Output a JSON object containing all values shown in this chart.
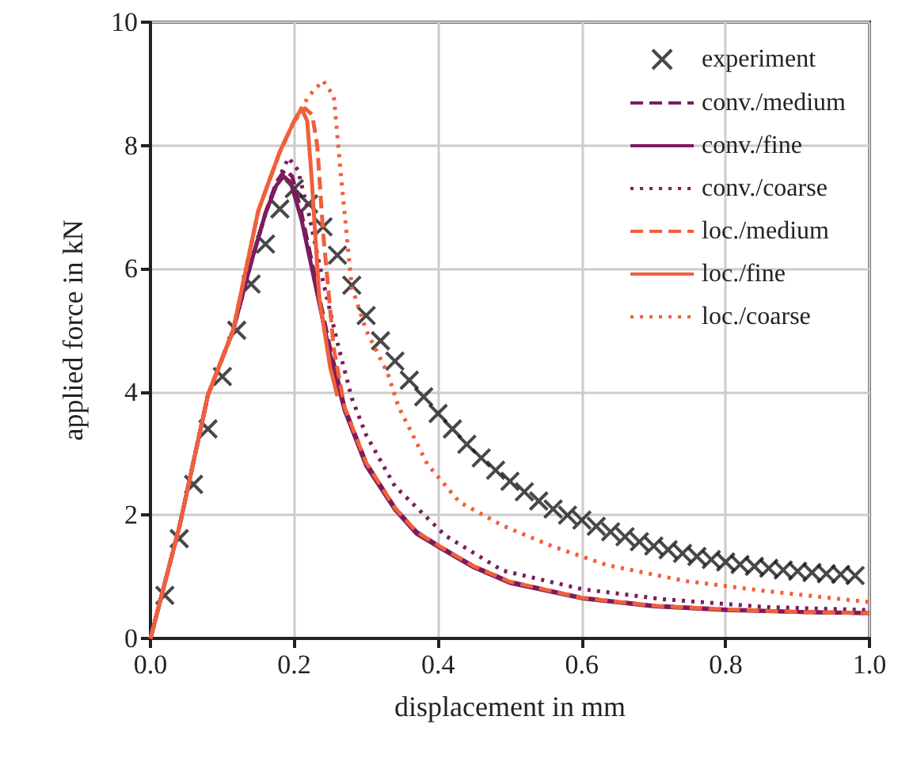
{
  "chart_data": {
    "type": "line",
    "xlabel": "displacement in mm",
    "ylabel": "applied force in kN",
    "xlim": [
      0,
      1
    ],
    "xticks": [
      {
        "value": 0,
        "label": "0.0"
      },
      0.2,
      0.4,
      0.6,
      0.8,
      {
        "value": 1,
        "label": "1.0"
      }
    ],
    "ylim": [
      0,
      10
    ],
    "yticks": [
      0,
      2,
      4,
      6,
      8,
      10
    ],
    "grid": true,
    "legend": "top right",
    "series": [
      {
        "name": "experiment",
        "type": "scatter",
        "marker": "cross",
        "color": "#1a1a1a",
        "x": [
          0.02,
          0.04,
          0.06,
          0.08,
          0.1,
          0.12,
          0.14,
          0.16,
          0.18,
          0.2,
          0.22,
          0.24,
          0.26,
          0.28,
          0.3,
          0.32,
          0.34,
          0.36,
          0.38,
          0.4,
          0.42,
          0.44,
          0.46,
          0.48,
          0.5,
          0.52,
          0.54,
          0.56,
          0.58,
          0.6,
          0.62,
          0.64,
          0.66,
          0.68,
          0.7,
          0.72,
          0.74,
          0.76,
          0.78,
          0.8,
          0.82,
          0.84,
          0.86,
          0.88,
          0.9,
          0.92,
          0.94,
          0.96,
          0.98
        ],
        "values": [
          0.7,
          1.62,
          2.5,
          3.4,
          4.25,
          5.0,
          5.75,
          6.4,
          6.97,
          7.3,
          7.05,
          6.68,
          6.22,
          5.73,
          5.24,
          4.83,
          4.5,
          4.19,
          3.92,
          3.65,
          3.4,
          3.15,
          2.93,
          2.73,
          2.55,
          2.38,
          2.23,
          2.1,
          2.0,
          1.92,
          1.82,
          1.73,
          1.65,
          1.57,
          1.5,
          1.44,
          1.38,
          1.33,
          1.28,
          1.24,
          1.2,
          1.17,
          1.14,
          1.11,
          1.09,
          1.07,
          1.05,
          1.04,
          1.02
        ]
      },
      {
        "name": "conv./medium",
        "type": "line",
        "line_style": "dashed",
        "color": "#7b1c5c",
        "x": [
          0,
          0.04,
          0.08,
          0.115,
          0.14,
          0.16,
          0.175,
          0.187,
          0.197,
          0.21,
          0.23,
          0.25,
          0.27,
          0.3,
          0.34,
          0.37,
          0.41,
          0.45,
          0.5,
          0.6,
          0.7,
          0.8,
          0.9,
          1.0
        ],
        "values": [
          0,
          1.8,
          3.95,
          5.0,
          6.1,
          6.9,
          7.4,
          7.6,
          7.5,
          6.9,
          5.8,
          4.7,
          3.75,
          2.85,
          2.12,
          1.73,
          1.44,
          1.17,
          0.92,
          0.66,
          0.53,
          0.47,
          0.43,
          0.41
        ]
      },
      {
        "name": "conv./fine",
        "type": "line",
        "line_style": "solid",
        "color": "#7b1c5c",
        "x": [
          0,
          0.04,
          0.08,
          0.115,
          0.14,
          0.16,
          0.175,
          0.185,
          0.195,
          0.21,
          0.23,
          0.25,
          0.27,
          0.3,
          0.34,
          0.37,
          0.41,
          0.45,
          0.5,
          0.6,
          0.7,
          0.8,
          0.9,
          1.0
        ],
        "values": [
          0,
          1.8,
          3.95,
          5.0,
          6.1,
          6.9,
          7.35,
          7.5,
          7.4,
          6.8,
          5.7,
          4.6,
          3.7,
          2.8,
          2.09,
          1.7,
          1.42,
          1.15,
          0.9,
          0.65,
          0.52,
          0.46,
          0.43,
          0.41
        ]
      },
      {
        "name": "conv./coarse",
        "type": "line",
        "line_style": "dotted",
        "color": "#7b1c5c",
        "x": [
          0,
          0.04,
          0.08,
          0.115,
          0.14,
          0.16,
          0.18,
          0.192,
          0.205,
          0.22,
          0.24,
          0.26,
          0.28,
          0.3,
          0.34,
          0.41,
          0.49,
          0.6,
          0.71,
          0.855,
          1.0
        ],
        "values": [
          0,
          1.8,
          3.95,
          5.0,
          6.1,
          6.9,
          7.5,
          7.8,
          7.6,
          6.9,
          5.8,
          4.8,
          3.9,
          3.3,
          2.47,
          1.67,
          1.1,
          0.8,
          0.64,
          0.51,
          0.46
        ]
      },
      {
        "name": "loc./medium",
        "type": "line",
        "line_style": "dashed",
        "color": "#f0603c",
        "x": [
          0,
          0.04,
          0.08,
          0.115,
          0.15,
          0.18,
          0.2,
          0.215,
          0.225,
          0.232,
          0.24,
          0.255,
          0.27,
          0.3,
          0.34,
          0.37,
          0.41,
          0.45,
          0.5,
          0.6,
          0.7,
          0.8,
          0.9,
          1.0
        ],
        "values": [
          0,
          1.8,
          3.95,
          5.0,
          6.94,
          7.9,
          8.4,
          8.6,
          8.5,
          8.0,
          6.6,
          4.7,
          3.75,
          2.85,
          2.12,
          1.73,
          1.44,
          1.17,
          0.92,
          0.66,
          0.53,
          0.47,
          0.43,
          0.41
        ]
      },
      {
        "name": "loc./fine",
        "type": "line",
        "line_style": "solid",
        "color": "#f0603c",
        "x": [
          0,
          0.04,
          0.08,
          0.115,
          0.15,
          0.18,
          0.2,
          0.21,
          0.218,
          0.224,
          0.235,
          0.25,
          0.26
        ],
        "values": [
          0,
          1.8,
          3.95,
          5.0,
          6.94,
          7.9,
          8.4,
          8.6,
          8.4,
          7.5,
          5.5,
          4.4,
          3.93
        ]
      },
      {
        "name": "loc./coarse",
        "type": "line",
        "line_style": "dotted",
        "color": "#f0603c",
        "x": [
          0,
          0.04,
          0.08,
          0.115,
          0.15,
          0.18,
          0.2,
          0.22,
          0.24,
          0.255,
          0.265,
          0.28,
          0.3,
          0.33,
          0.345,
          0.385,
          0.43,
          0.49,
          0.56,
          0.635,
          0.745,
          0.855,
          1.0
        ],
        "values": [
          0,
          1.8,
          3.95,
          5.0,
          6.94,
          7.9,
          8.4,
          8.8,
          9.05,
          8.8,
          7.5,
          5.7,
          5.0,
          4.3,
          3.76,
          2.83,
          2.21,
          1.83,
          1.49,
          1.19,
          0.93,
          0.77,
          0.59
        ]
      }
    ]
  }
}
